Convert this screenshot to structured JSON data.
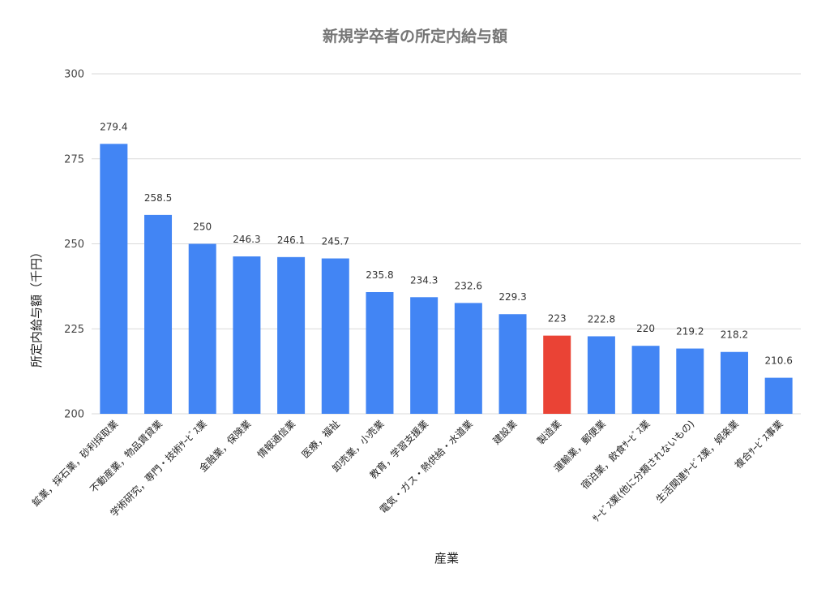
{
  "chart_data": {
    "type": "bar",
    "title": "新規学卒者の所定内給与額",
    "xlabel": "産業",
    "ylabel": "所定内給与額（千円）",
    "ylim": [
      200,
      300
    ],
    "yticks": [
      200,
      225,
      250,
      275,
      300
    ],
    "grid": true,
    "categories": [
      "鉱業，採石業，砂利採取業",
      "不動産業，物品賃貸業",
      "学術研究，専門・技術ｻｰﾋﾞｽ業",
      "金融業，保険業",
      "情報通信業",
      "医療，福祉",
      "卸売業，小売業",
      "教育，学習支援業",
      "電気・ガス・熱供給・水道業",
      "建設業",
      "製造業",
      "運輸業，郵便業",
      "宿泊業，飲食ｻｰﾋﾞｽ業",
      "ｻｰﾋﾞｽ業(他に分類されないもの)",
      "生活関連ｻｰﾋﾞｽ業，娯楽業",
      "複合ｻｰﾋﾞｽ事業"
    ],
    "values": [
      279.4,
      258.5,
      250,
      246.3,
      246.1,
      245.7,
      235.8,
      234.3,
      232.6,
      229.3,
      223,
      222.8,
      220,
      219.2,
      218.2,
      210.6
    ],
    "value_labels": [
      "279.4",
      "258.5",
      "250",
      "246.3",
      "246.1",
      "245.7",
      "235.8",
      "234.3",
      "232.6",
      "229.3",
      "223",
      "222.8",
      "220",
      "219.2",
      "218.2",
      "210.6"
    ],
    "highlight_index": 10,
    "colors": {
      "bar": "#4285f4",
      "highlight": "#ea4335"
    }
  }
}
